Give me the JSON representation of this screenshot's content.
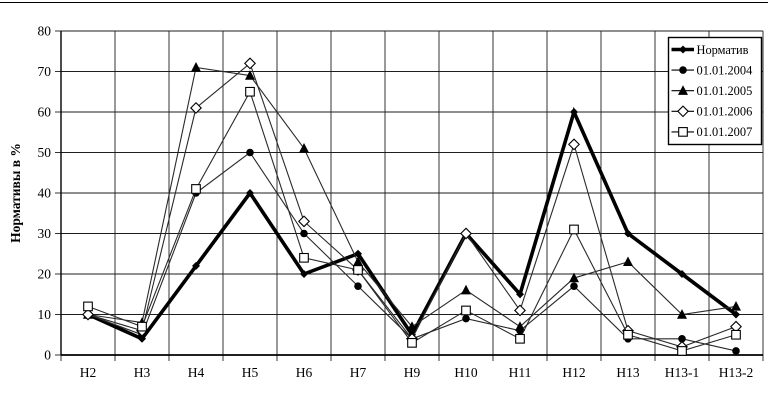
{
  "chart_data": {
    "type": "line",
    "title": "",
    "ylabel": "Нормативы в %",
    "xlabel": "",
    "ylim": [
      0,
      80
    ],
    "yticks": [
      0,
      10,
      20,
      30,
      40,
      50,
      60,
      70,
      80
    ],
    "grid": true,
    "legend_position": "top-right",
    "categories": [
      "Н2",
      "Н3",
      "Н4",
      "Н5",
      "Н6",
      "Н7",
      "Н9",
      "Н10",
      "Н11",
      "Н12",
      "Н13",
      "Н13-1",
      "Н13-2"
    ],
    "series": [
      {
        "name": "Норматив",
        "marker": "diamond-filled-small",
        "color": "#000000",
        "line_width": 3.6,
        "values": [
          10,
          4,
          22,
          40,
          20,
          25,
          5,
          30,
          15,
          60,
          30,
          20,
          10
        ]
      },
      {
        "name": "01.01.2004",
        "marker": "circle-filled",
        "color": "#000000",
        "line_width": 1.1,
        "values": [
          10,
          5,
          40,
          50,
          30,
          17,
          4,
          9,
          6,
          17,
          4,
          4,
          1
        ]
      },
      {
        "name": "01.01.2005",
        "marker": "triangle-filled",
        "color": "#000000",
        "line_width": 1.1,
        "values": [
          10,
          8,
          71,
          69,
          51,
          23,
          7,
          16,
          7,
          19,
          23,
          10,
          12
        ]
      },
      {
        "name": "01.01.2006",
        "marker": "diamond-open",
        "color": "#000000",
        "line_width": 1.1,
        "values": [
          10,
          6,
          61,
          72,
          33,
          21,
          4,
          30,
          11,
          52,
          6,
          2,
          7
        ]
      },
      {
        "name": "01.01.2007",
        "marker": "square-open",
        "color": "#000000",
        "line_width": 1.1,
        "values": [
          12,
          7,
          41,
          65,
          24,
          21,
          3,
          11,
          4,
          31,
          5,
          1,
          5
        ]
      }
    ]
  }
}
